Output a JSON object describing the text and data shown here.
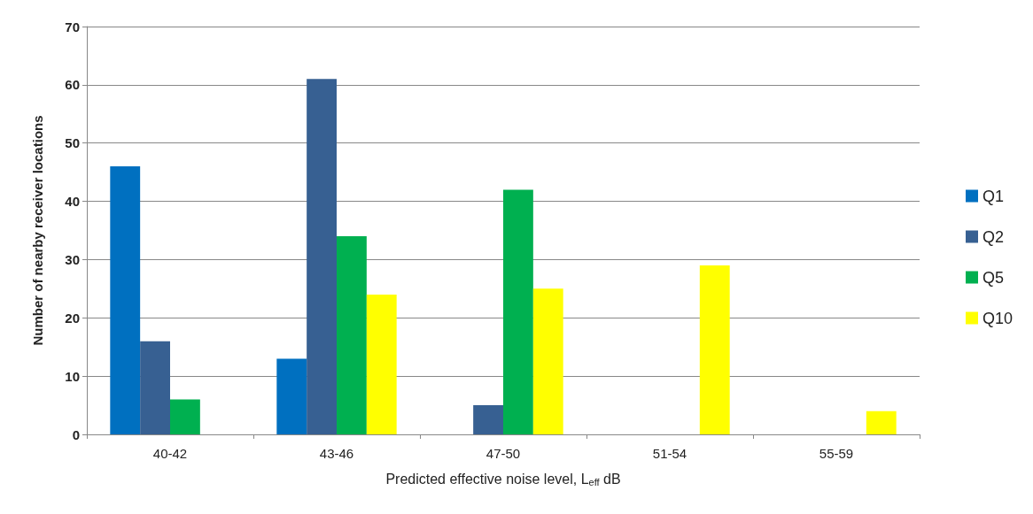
{
  "chart_data": {
    "type": "bar",
    "xlabel": "Predicted effective noise level, L$_{eff}$ dB",
    "ylabel": "Number of nearby receiver locations",
    "categories": [
      "40-42",
      "43-46",
      "47-50",
      "51-54",
      "55-59"
    ],
    "series": [
      {
        "name": "Q1",
        "color": "#0070c0",
        "values": [
          46,
          13,
          0,
          0,
          0
        ]
      },
      {
        "name": "Q2",
        "color": "#376092",
        "values": [
          16,
          61,
          5,
          0,
          0
        ]
      },
      {
        "name": "Q5",
        "color": "#00b050",
        "values": [
          6,
          34,
          42,
          0,
          0
        ]
      },
      {
        "name": "Q10",
        "color": "#ffff00",
        "values": [
          0,
          24,
          25,
          29,
          4
        ]
      }
    ],
    "ylim": [
      0,
      70
    ],
    "yticks": [
      0,
      10,
      20,
      30,
      40,
      50,
      60,
      70
    ],
    "grid": "y",
    "legend": "right"
  }
}
